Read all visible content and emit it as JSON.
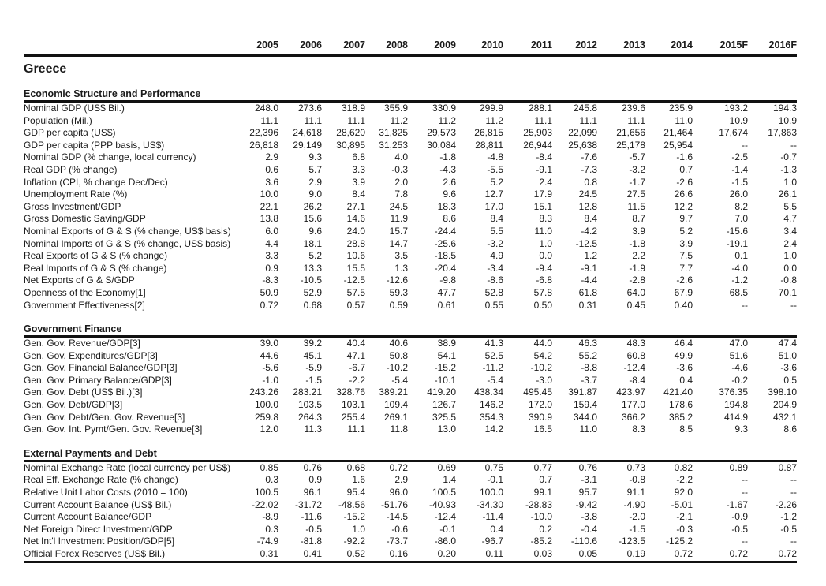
{
  "title": "Greece",
  "columns": [
    "2005",
    "2006",
    "2007",
    "2008",
    "2009",
    "2010",
    "2011",
    "2012",
    "2013",
    "2014",
    "2015F",
    "2016F"
  ],
  "colors": {
    "text": "#1a1a1a",
    "rule": "#111111",
    "background": "#ffffff"
  },
  "sections": [
    {
      "title": "Economic Structure and Performance",
      "rows": [
        {
          "label": "Nominal GDP (US$ Bil.)",
          "values": [
            "248.0",
            "273.6",
            "318.9",
            "355.9",
            "330.9",
            "299.9",
            "288.1",
            "245.8",
            "239.6",
            "235.9",
            "193.2",
            "194.3"
          ]
        },
        {
          "label": "Population (Mil.)",
          "values": [
            "11.1",
            "11.1",
            "11.1",
            "11.2",
            "11.2",
            "11.2",
            "11.1",
            "11.1",
            "11.1",
            "11.0",
            "10.9",
            "10.9"
          ]
        },
        {
          "label": "GDP per capita (US$)",
          "values": [
            "22,396",
            "24,618",
            "28,620",
            "31,825",
            "29,573",
            "26,815",
            "25,903",
            "22,099",
            "21,656",
            "21,464",
            "17,674",
            "17,863"
          ]
        },
        {
          "label": "GDP per capita (PPP basis, US$)",
          "values": [
            "26,818",
            "29,149",
            "30,895",
            "31,253",
            "30,084",
            "28,811",
            "26,944",
            "25,638",
            "25,178",
            "25,954",
            "--",
            "--"
          ]
        },
        {
          "label": "Nominal GDP (% change, local currency)",
          "values": [
            "2.9",
            "9.3",
            "6.8",
            "4.0",
            "-1.8",
            "-4.8",
            "-8.4",
            "-7.6",
            "-5.7",
            "-1.6",
            "-2.5",
            "-0.7"
          ]
        },
        {
          "label": "Real GDP (% change)",
          "values": [
            "0.6",
            "5.7",
            "3.3",
            "-0.3",
            "-4.3",
            "-5.5",
            "-9.1",
            "-7.3",
            "-3.2",
            "0.7",
            "-1.4",
            "-1.3"
          ]
        },
        {
          "label": "Inflation (CPI, % change Dec/Dec)",
          "values": [
            "3.6",
            "2.9",
            "3.9",
            "2.0",
            "2.6",
            "5.2",
            "2.4",
            "0.8",
            "-1.7",
            "-2.6",
            "-1.5",
            "1.0"
          ]
        },
        {
          "label": "Unemployment Rate (%)",
          "values": [
            "10.0",
            "9.0",
            "8.4",
            "7.8",
            "9.6",
            "12.7",
            "17.9",
            "24.5",
            "27.5",
            "26.6",
            "26.0",
            "26.1"
          ]
        },
        {
          "label": "Gross Investment/GDP",
          "values": [
            "22.1",
            "26.2",
            "27.1",
            "24.5",
            "18.3",
            "17.0",
            "15.1",
            "12.8",
            "11.5",
            "12.2",
            "8.2",
            "5.5"
          ]
        },
        {
          "label": "Gross Domestic Saving/GDP",
          "values": [
            "13.8",
            "15.6",
            "14.6",
            "11.9",
            "8.6",
            "8.4",
            "8.3",
            "8.4",
            "8.7",
            "9.7",
            "7.0",
            "4.7"
          ]
        },
        {
          "label": "Nominal Exports of G & S (% change, US$ basis)",
          "values": [
            "6.0",
            "9.6",
            "24.0",
            "15.7",
            "-24.4",
            "5.5",
            "11.0",
            "-4.2",
            "3.9",
            "5.2",
            "-15.6",
            "3.4"
          ]
        },
        {
          "label": "Nominal Imports of G & S (% change, US$ basis)",
          "values": [
            "4.4",
            "18.1",
            "28.8",
            "14.7",
            "-25.6",
            "-3.2",
            "1.0",
            "-12.5",
            "-1.8",
            "3.9",
            "-19.1",
            "2.4"
          ]
        },
        {
          "label": "Real Exports of G & S (% change)",
          "values": [
            "3.3",
            "5.2",
            "10.6",
            "3.5",
            "-18.5",
            "4.9",
            "0.0",
            "1.2",
            "2.2",
            "7.5",
            "0.1",
            "1.0"
          ]
        },
        {
          "label": "Real Imports of G & S (% change)",
          "values": [
            "0.9",
            "13.3",
            "15.5",
            "1.3",
            "-20.4",
            "-3.4",
            "-9.4",
            "-9.1",
            "-1.9",
            "7.7",
            "-4.0",
            "0.0"
          ]
        },
        {
          "label": "Net Exports of G & S/GDP",
          "values": [
            "-8.3",
            "-10.5",
            "-12.5",
            "-12.6",
            "-9.8",
            "-8.6",
            "-6.8",
            "-4.4",
            "-2.8",
            "-2.6",
            "-1.2",
            "-0.8"
          ]
        },
        {
          "label": "Openness of the Economy[1]",
          "values": [
            "50.9",
            "52.9",
            "57.5",
            "59.3",
            "47.7",
            "52.8",
            "57.8",
            "61.8",
            "64.0",
            "67.9",
            "68.5",
            "70.1"
          ]
        },
        {
          "label": "Government Effectiveness[2]",
          "values": [
            "0.72",
            "0.68",
            "0.57",
            "0.59",
            "0.61",
            "0.55",
            "0.50",
            "0.31",
            "0.45",
            "0.40",
            "--",
            "--"
          ]
        }
      ]
    },
    {
      "title": "Government Finance",
      "rows": [
        {
          "label": "Gen. Gov. Revenue/GDP[3]",
          "values": [
            "39.0",
            "39.2",
            "40.4",
            "40.6",
            "38.9",
            "41.3",
            "44.0",
            "46.3",
            "48.3",
            "46.4",
            "47.0",
            "47.4"
          ]
        },
        {
          "label": "Gen. Gov. Expenditures/GDP[3]",
          "values": [
            "44.6",
            "45.1",
            "47.1",
            "50.8",
            "54.1",
            "52.5",
            "54.2",
            "55.2",
            "60.8",
            "49.9",
            "51.6",
            "51.0"
          ]
        },
        {
          "label": "Gen. Gov. Financial Balance/GDP[3]",
          "values": [
            "-5.6",
            "-5.9",
            "-6.7",
            "-10.2",
            "-15.2",
            "-11.2",
            "-10.2",
            "-8.8",
            "-12.4",
            "-3.6",
            "-4.6",
            "-3.6"
          ]
        },
        {
          "label": "Gen. Gov. Primary Balance/GDP[3]",
          "values": [
            "-1.0",
            "-1.5",
            "-2.2",
            "-5.4",
            "-10.1",
            "-5.4",
            "-3.0",
            "-3.7",
            "-8.4",
            "0.4",
            "-0.2",
            "0.5"
          ]
        },
        {
          "label": "Gen. Gov. Debt (US$ Bil.)[3]",
          "values": [
            "243.26",
            "283.21",
            "328.76",
            "389.21",
            "419.20",
            "438.34",
            "495.45",
            "391.87",
            "423.97",
            "421.40",
            "376.35",
            "398.10"
          ]
        },
        {
          "label": "Gen. Gov. Debt/GDP[3]",
          "values": [
            "100.0",
            "103.5",
            "103.1",
            "109.4",
            "126.7",
            "146.2",
            "172.0",
            "159.4",
            "177.0",
            "178.6",
            "194.8",
            "204.9"
          ]
        },
        {
          "label": "Gen. Gov. Debt/Gen. Gov. Revenue[3]",
          "values": [
            "259.8",
            "264.3",
            "255.4",
            "269.1",
            "325.5",
            "354.3",
            "390.9",
            "344.0",
            "366.2",
            "385.2",
            "414.9",
            "432.1"
          ]
        },
        {
          "label": "Gen. Gov. Int. Pymt/Gen. Gov. Revenue[3]",
          "values": [
            "12.0",
            "11.3",
            "11.1",
            "11.8",
            "13.0",
            "14.2",
            "16.5",
            "11.0",
            "8.3",
            "8.5",
            "9.3",
            "8.6"
          ]
        }
      ]
    },
    {
      "title": "External Payments and Debt",
      "rows": [
        {
          "label": "Nominal Exchange Rate (local currency per US$)",
          "values": [
            "0.85",
            "0.76",
            "0.68",
            "0.72",
            "0.69",
            "0.75",
            "0.77",
            "0.76",
            "0.73",
            "0.82",
            "0.89",
            "0.87"
          ]
        },
        {
          "label": "Real Eff. Exchange Rate (% change)",
          "values": [
            "0.3",
            "0.9",
            "1.6",
            "2.9",
            "1.4",
            "-0.1",
            "0.7",
            "-3.1",
            "-0.8",
            "-2.2",
            "--",
            "--"
          ]
        },
        {
          "label": "Relative Unit Labor Costs (2010 = 100)",
          "values": [
            "100.5",
            "96.1",
            "95.4",
            "96.0",
            "100.5",
            "100.0",
            "99.1",
            "95.7",
            "91.1",
            "92.0",
            "--",
            "--"
          ]
        },
        {
          "label": "Current Account Balance (US$ Bil.)",
          "values": [
            "-22.02",
            "-31.72",
            "-48.56",
            "-51.76",
            "-40.93",
            "-34.30",
            "-28.83",
            "-9.42",
            "-4.90",
            "-5.01",
            "-1.67",
            "-2.26"
          ]
        },
        {
          "label": "Current Account Balance/GDP",
          "values": [
            "-8.9",
            "-11.6",
            "-15.2",
            "-14.5",
            "-12.4",
            "-11.4",
            "-10.0",
            "-3.8",
            "-2.0",
            "-2.1",
            "-0.9",
            "-1.2"
          ]
        },
        {
          "label": "Net Foreign Direct Investment/GDP",
          "values": [
            "0.3",
            "-0.5",
            "1.0",
            "-0.6",
            "-0.1",
            "0.4",
            "0.2",
            "-0.4",
            "-1.5",
            "-0.3",
            "-0.5",
            "-0.5"
          ]
        },
        {
          "label": "Net Int'l Investment Position/GDP[5]",
          "values": [
            "-74.9",
            "-81.8",
            "-92.2",
            "-73.7",
            "-86.0",
            "-96.7",
            "-85.2",
            "-110.6",
            "-123.5",
            "-125.2",
            "--",
            "--"
          ]
        },
        {
          "label": "Official Forex Reserves (US$ Bil.)",
          "values": [
            "0.31",
            "0.41",
            "0.52",
            "0.16",
            "0.20",
            "0.11",
            "0.03",
            "0.05",
            "0.19",
            "0.72",
            "0.72",
            "0.72"
          ]
        }
      ]
    }
  ]
}
